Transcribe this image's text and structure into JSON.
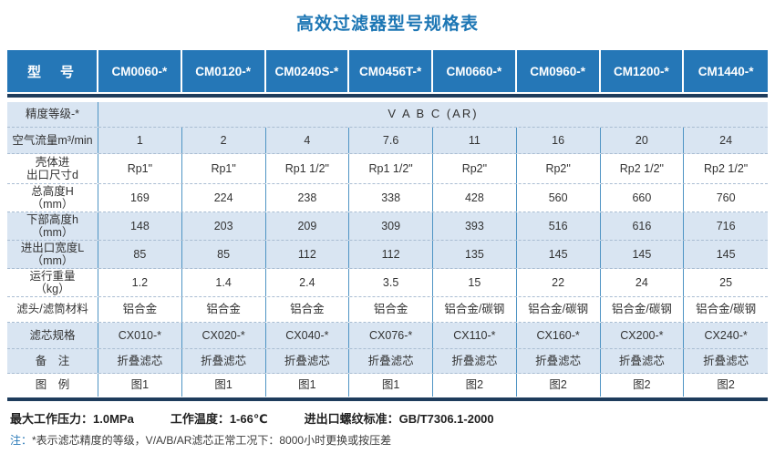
{
  "title": "高效过滤器型号规格表",
  "table": {
    "header": [
      "型　号",
      "CM0060-*",
      "CM0120-*",
      "CM0240S-*",
      "CM0456T-*",
      "CM0660-*",
      "CM0960-*",
      "CM1200-*",
      "CM1440-*"
    ],
    "rows": [
      {
        "label": "精度等级-*",
        "merged_value": "V A B C (AR)",
        "band": true
      },
      {
        "label": "空气流量m³/min",
        "values": [
          "1",
          "2",
          "4",
          "7.6",
          "11",
          "16",
          "20",
          "24"
        ],
        "band": true
      },
      {
        "label": "壳体进",
        "label2": "出口尺寸d",
        "values": [
          "Rp1\"",
          "Rp1\"",
          "Rp1 1/2\"",
          "Rp1 1/2\"",
          "Rp2\"",
          "Rp2\"",
          "Rp2 1/2\"",
          "Rp2 1/2\""
        ],
        "band": false
      },
      {
        "label": "总高度H",
        "label2": "（mm）",
        "values": [
          "169",
          "224",
          "238",
          "338",
          "428",
          "560",
          "660",
          "760"
        ],
        "band": false
      },
      {
        "label": "下部高度h",
        "label2": "（mm）",
        "values": [
          "148",
          "203",
          "209",
          "309",
          "393",
          "516",
          "616",
          "716"
        ],
        "band": true
      },
      {
        "label": "进出口宽度L",
        "label2": "（mm）",
        "values": [
          "85",
          "85",
          "112",
          "112",
          "135",
          "145",
          "145",
          "145"
        ],
        "band": true
      },
      {
        "label": "运行重量",
        "label2": "（kg）",
        "values": [
          "1.2",
          "1.4",
          "2.4",
          "3.5",
          "15",
          "22",
          "24",
          "25"
        ],
        "band": false
      },
      {
        "label": "滤头/滤筒材料",
        "values": [
          "铝合金",
          "铝合金",
          "铝合金",
          "铝合金",
          "铝合金/碳钢",
          "铝合金/碳钢",
          "铝合金/碳钢",
          "铝合金/碳钢"
        ],
        "band": false
      },
      {
        "label": "滤芯规格",
        "values": [
          "CX010-*",
          "CX020-*",
          "CX040-*",
          "CX076-*",
          "CX110-*",
          "CX160-*",
          "CX200-*",
          "CX240-*"
        ],
        "band": true
      },
      {
        "label": "备　注",
        "values": [
          "折叠滤芯",
          "折叠滤芯",
          "折叠滤芯",
          "折叠滤芯",
          "折叠滤芯",
          "折叠滤芯",
          "折叠滤芯",
          "折叠滤芯"
        ],
        "band": true
      },
      {
        "label": "图　例",
        "values": [
          "图1",
          "图1",
          "图1",
          "图1",
          "图2",
          "图2",
          "图2",
          "图2"
        ],
        "band": false
      }
    ]
  },
  "footer": {
    "max_pressure": "最大工作压力：1.0MPa",
    "work_temp": "工作温度：1-66℃",
    "thread_standard": "进出口螺纹标准：GB/T7306.1-2000",
    "note_prefix": "注：",
    "note_text": "*表示滤芯精度的等级，V/A/B/AR滤芯正常工况下：8000小时更换或按压差"
  },
  "colors": {
    "title_blue": "#1c76b4",
    "header_blue": "#2577b7",
    "band_blue": "#d9e5f2",
    "navy_line": "#1e3c5c",
    "separator_blue": "#4f94c4",
    "note_blue": "#2a7ab8"
  }
}
